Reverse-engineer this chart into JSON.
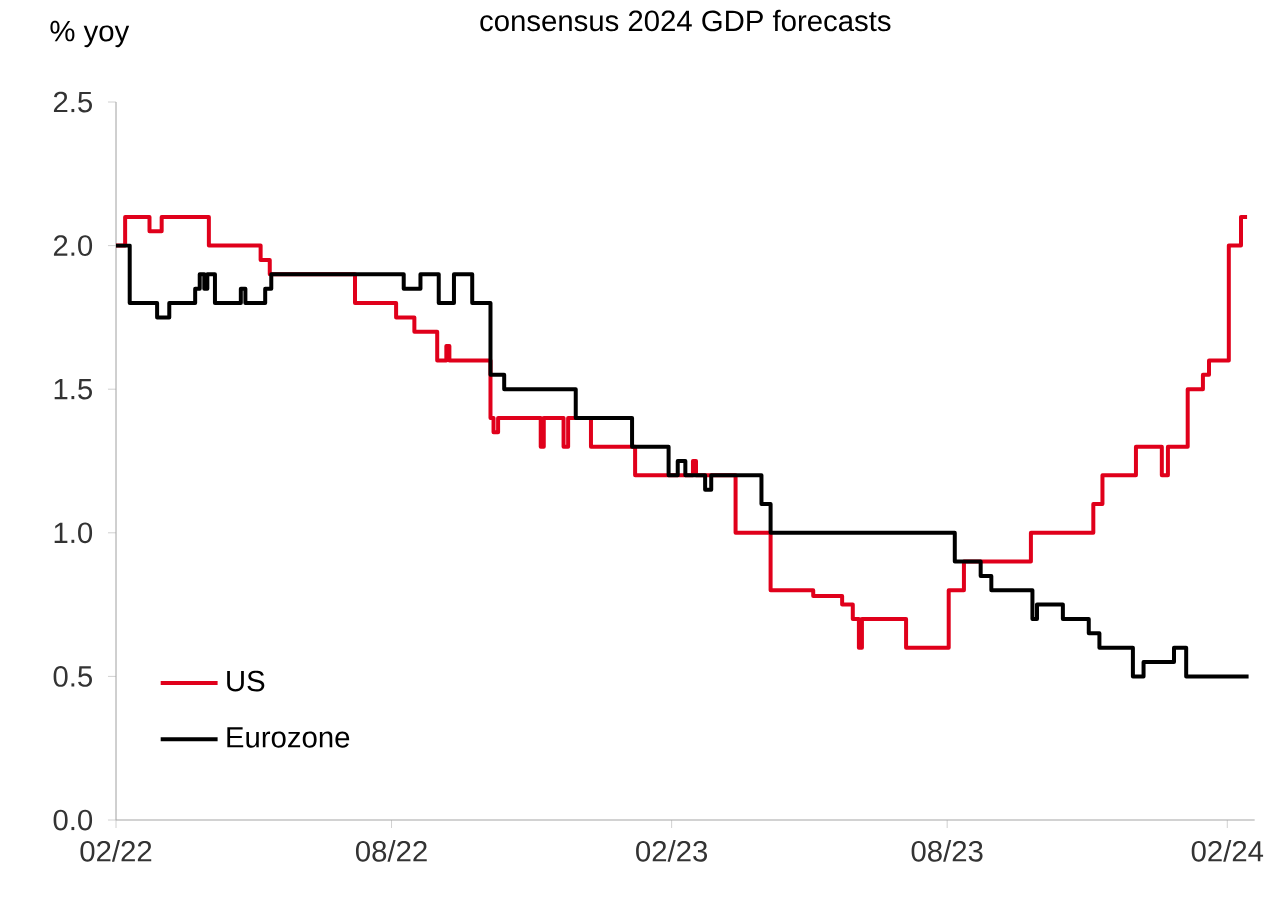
{
  "chart_data": {
    "type": "step",
    "title": "consensus 2024 GDP forecasts",
    "ylabel": "% yoy",
    "xlim": [
      "2022-02-01",
      "2024-02-19"
    ],
    "ylim": [
      0,
      2.5
    ],
    "xticks": [
      {
        "value": "2022-02-01",
        "label": "02/22"
      },
      {
        "value": "2022-08-01",
        "label": "08/22"
      },
      {
        "value": "2023-02-01",
        "label": "02/23"
      },
      {
        "value": "2023-08-01",
        "label": "08/23"
      },
      {
        "value": "2024-02-01",
        "label": "02/24"
      }
    ],
    "yticks": [
      {
        "value": 0,
        "label": "0.0"
      },
      {
        "value": 0.5,
        "label": "0.5"
      },
      {
        "value": 1,
        "label": "1.0"
      },
      {
        "value": 1.5,
        "label": "1.5"
      },
      {
        "value": 2,
        "label": "2.0"
      },
      {
        "value": 2.5,
        "label": "2.5"
      }
    ],
    "legend": "bottom left",
    "series": [
      {
        "name": "US",
        "color": "#e0001b",
        "x": [
          "2022-02-01",
          "2022-02-07",
          "2022-02-23",
          "2022-03-03",
          "2022-04-03",
          "2022-05-07",
          "2022-05-13",
          "2022-07-08",
          "2022-08-04",
          "2022-08-16",
          "2022-08-31",
          "2022-09-06",
          "2022-09-08",
          "2022-10-05",
          "2022-10-07",
          "2022-10-10",
          "2022-11-07",
          "2022-11-09",
          "2022-11-22",
          "2022-11-25",
          "2022-12-10",
          "2023-01-08",
          "2023-02-15",
          "2023-02-17",
          "2023-03-15",
          "2023-04-07",
          "2023-05-05",
          "2023-05-24",
          "2023-05-31",
          "2023-06-04",
          "2023-06-06",
          "2023-07-05",
          "2023-08-02",
          "2023-08-12",
          "2023-09-25",
          "2023-11-05",
          "2023-11-11",
          "2023-12-03",
          "2023-12-20",
          "2023-12-24",
          "2024-01-06",
          "2024-01-16",
          "2024-01-20",
          "2024-02-02",
          "2024-02-10",
          "2024-02-14"
        ],
        "values": [
          2.0,
          2.1,
          2.05,
          2.1,
          2.0,
          1.95,
          1.9,
          1.8,
          1.75,
          1.7,
          1.6,
          1.65,
          1.6,
          1.4,
          1.35,
          1.4,
          1.3,
          1.4,
          1.3,
          1.4,
          1.3,
          1.2,
          1.25,
          1.2,
          1.0,
          0.8,
          0.78,
          0.75,
          0.7,
          0.6,
          0.7,
          0.6,
          0.8,
          0.9,
          1.0,
          1.1,
          1.2,
          1.3,
          1.2,
          1.3,
          1.5,
          1.55,
          1.6,
          2.0,
          2.1,
          2.1
        ]
      },
      {
        "name": "Eurozone",
        "color": "#000000",
        "x": [
          "2022-02-01",
          "2022-02-10",
          "2022-02-28",
          "2022-03-08",
          "2022-03-25",
          "2022-03-28",
          "2022-03-31",
          "2022-04-02",
          "2022-04-07",
          "2022-04-24",
          "2022-04-27",
          "2022-05-10",
          "2022-05-14",
          "2022-08-09",
          "2022-08-20",
          "2022-09-01",
          "2022-09-11",
          "2022-09-23",
          "2022-10-05",
          "2022-10-14",
          "2022-11-30",
          "2023-01-06",
          "2023-01-30",
          "2023-02-05",
          "2023-02-10",
          "2023-02-23",
          "2023-02-27",
          "2023-04-01",
          "2023-04-07",
          "2023-08-06",
          "2023-08-23",
          "2023-08-30",
          "2023-09-26",
          "2023-09-29",
          "2023-10-16",
          "2023-11-02",
          "2023-11-09",
          "2023-12-01",
          "2023-12-08",
          "2023-12-28",
          "2024-01-05",
          "2024-02-15"
        ],
        "values": [
          2.0,
          1.8,
          1.75,
          1.8,
          1.85,
          1.9,
          1.85,
          1.9,
          1.8,
          1.85,
          1.8,
          1.85,
          1.9,
          1.85,
          1.9,
          1.8,
          1.9,
          1.8,
          1.55,
          1.5,
          1.4,
          1.3,
          1.2,
          1.25,
          1.2,
          1.15,
          1.2,
          1.1,
          1.0,
          0.9,
          0.85,
          0.8,
          0.7,
          0.75,
          0.7,
          0.65,
          0.6,
          0.5,
          0.55,
          0.6,
          0.5,
          0.5
        ]
      }
    ]
  }
}
